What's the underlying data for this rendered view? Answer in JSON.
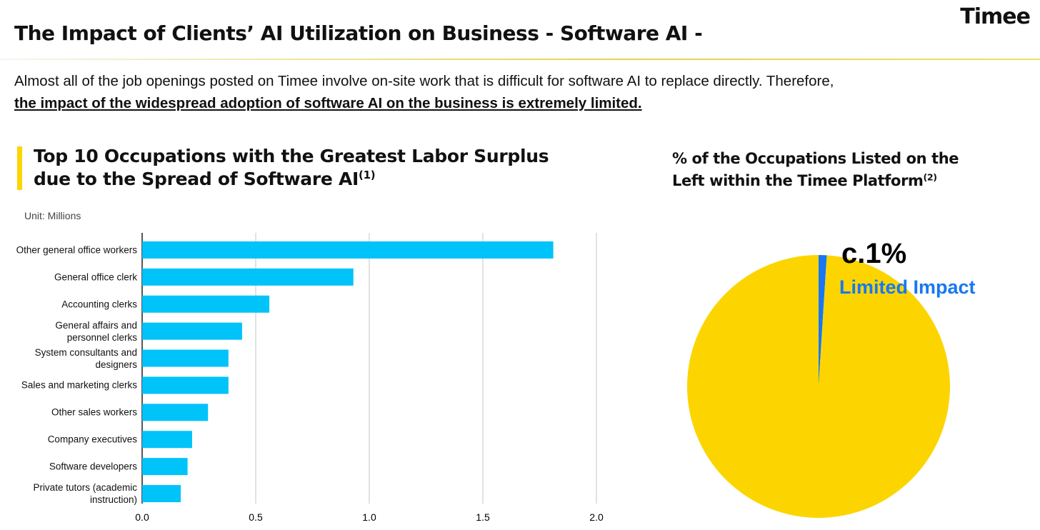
{
  "header": {
    "title": "The Impact of Clients’ AI Utilization on Business - Software AI -",
    "logo": "Timee"
  },
  "lead": {
    "text": "Almost all of the job openings posted on Timee involve on-site work that is difficult for software AI to replace directly. Therefore,",
    "emphasis": "the impact of the widespread adoption of software AI on the business is extremely limited."
  },
  "chart_data": [
    {
      "type": "bar",
      "orientation": "horizontal",
      "title": "Top 10 Occupations with the Greatest Labor Surplus due to the Spread of Software AI",
      "title_note": "(1)",
      "unit": "Unit: Millions",
      "categories": [
        "Other general office workers",
        "General office clerk",
        "Accounting clerks",
        "General affairs and personnel clerks",
        "System consultants and designers",
        "Sales and marketing clerks",
        "Other sales workers",
        "Company executives",
        "Software developers",
        "Private tutors (academic instruction)"
      ],
      "values": [
        1.81,
        0.93,
        0.56,
        0.44,
        0.38,
        0.38,
        0.29,
        0.22,
        0.2,
        0.17
      ],
      "color": "#00c3f9",
      "xlim": [
        0,
        2
      ],
      "xticks": [
        {
          "value": 0,
          "label": "0.0"
        },
        0.5,
        {
          "value": 1,
          "label": "1.0"
        },
        1.5,
        {
          "value": 2,
          "label": "2.0"
        }
      ],
      "grid": true
    },
    {
      "type": "pie",
      "title": "% of the Occupations Listed on the Left within the Timee Platform",
      "title_note": "(2)",
      "values": [
        1,
        99
      ],
      "value_labels": [
        "c.1%",
        null
      ],
      "colors": [
        "#1877f2",
        "#fcd500"
      ],
      "annotation": "Limited Impact"
    }
  ]
}
